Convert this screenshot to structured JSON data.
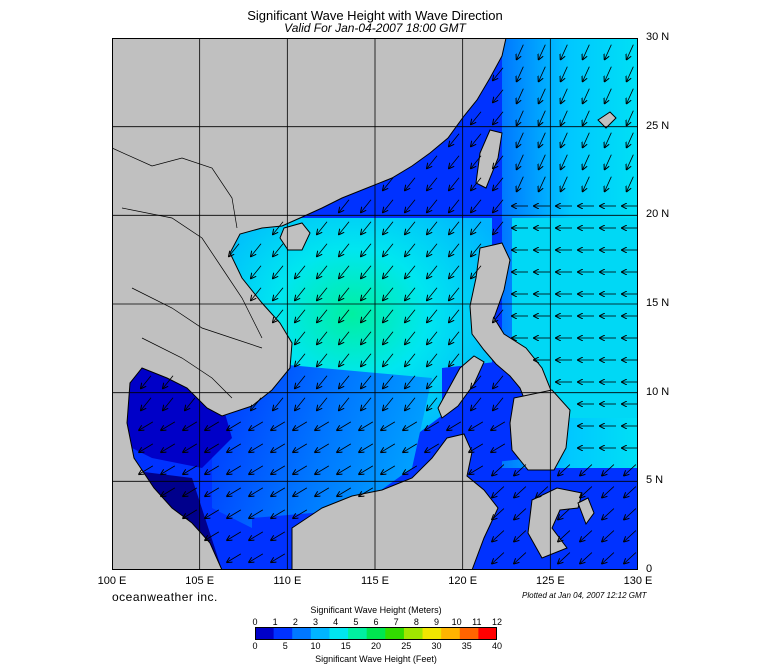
{
  "title": "Significant Wave Height with Wave Direction",
  "subtitle": "Valid For Jan-04-2007 18:00 GMT",
  "brand": "oceanweather inc.",
  "plotted_text": "Plotted at Jan 04, 2007 12:12 GMT",
  "map": {
    "lon_range": [
      100,
      130
    ],
    "lat_range": [
      0,
      30
    ],
    "lon_labels": [
      "100 E",
      "105 E",
      "110 E",
      "115 E",
      "120 E",
      "125 E",
      "130 E"
    ],
    "lat_labels": [
      "30 N",
      "25 N",
      "20 N",
      "15 N",
      "10 N",
      "5 N",
      "0"
    ],
    "land_color": "#c0c0c0",
    "coast_color": "#000000",
    "grid_color": "#000000",
    "dominant_direction": "northeast monsoon (waves toward southwest)"
  },
  "legend": {
    "meters_title": "Significant Wave Height (Meters)",
    "feet_title": "Significant Wave Height (Feet)",
    "meters_ticks": [
      "0",
      "1",
      "2",
      "3",
      "4",
      "5",
      "6",
      "7",
      "8",
      "9",
      "10",
      "11",
      "12"
    ],
    "feet_ticks": [
      "0",
      "5",
      "10",
      "15",
      "20",
      "25",
      "30",
      "35",
      "40"
    ],
    "colors": [
      "#0000c8",
      "#0032ff",
      "#0078ff",
      "#00b4ff",
      "#00e6f0",
      "#00f0a0",
      "#00e650",
      "#32dc00",
      "#a0e600",
      "#f0e600",
      "#ffb400",
      "#ff6400",
      "#ff0000"
    ]
  }
}
